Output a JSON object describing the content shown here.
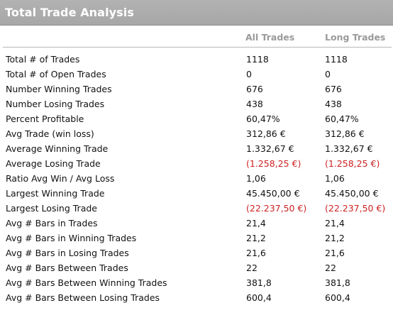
{
  "title": "Total Trade Analysis",
  "columns": {
    "all": "All Trades",
    "long": "Long Trades"
  },
  "colors": {
    "header_bg": "#ababab",
    "negative": "#cc2222",
    "column_header": "#9a9a9a"
  },
  "rows": [
    {
      "label": "Total # of Trades",
      "all": "1118",
      "long": "1118"
    },
    {
      "label": "Total # of Open Trades",
      "all": "0",
      "long": "0"
    },
    {
      "label": "Number Winning Trades",
      "all": "676",
      "long": "676"
    },
    {
      "label": "Number Losing Trades",
      "all": "438",
      "long": "438"
    },
    {
      "label": "Percent Profitable",
      "all": "60,47%",
      "long": "60,47%"
    },
    {
      "label": "Avg Trade (win  loss)",
      "all": "312,86 €",
      "long": "312,86 €"
    },
    {
      "label": "Average Winning Trade",
      "all": "1.332,67 €",
      "long": "1.332,67 €"
    },
    {
      "label": "Average Losing Trade",
      "all": "(1.258,25 €)",
      "long": "(1.258,25 €)",
      "negative": true
    },
    {
      "label": "Ratio Avg Win / Avg Loss",
      "all": "1,06",
      "long": "1,06"
    },
    {
      "label": "Largest Winning Trade",
      "all": "45.450,00 €",
      "long": "45.450,00 €"
    },
    {
      "label": "Largest Losing Trade",
      "all": "(22.237,50 €)",
      "long": "(22.237,50 €)",
      "negative": true
    },
    {
      "label": "Avg # Bars in Trades",
      "all": "21,4",
      "long": "21,4"
    },
    {
      "label": "Avg # Bars in Winning Trades",
      "all": "21,2",
      "long": "21,2"
    },
    {
      "label": "Avg # Bars in Losing Trades",
      "all": "21,6",
      "long": "21,6"
    },
    {
      "label": "Avg # Bars Between Trades",
      "all": "22",
      "long": "22"
    },
    {
      "label": "Avg # Bars Between Winning Trades",
      "all": "381,8",
      "long": "381,8"
    },
    {
      "label": "Avg # Bars Between Losing Trades",
      "all": "600,4",
      "long": "600,4"
    }
  ]
}
